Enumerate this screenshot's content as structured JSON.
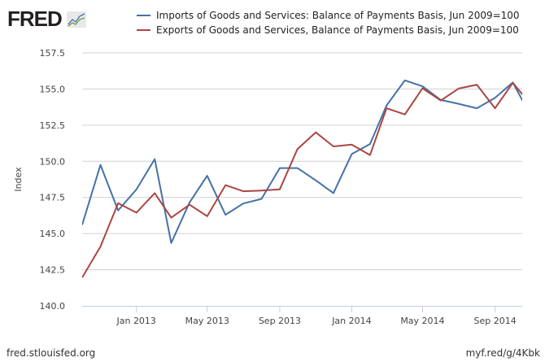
{
  "header": {
    "logo_text": "FRED"
  },
  "footer": {
    "source": "fred.stlouisfed.org",
    "short_url": "myf.red/g/4Kbk"
  },
  "colors": {
    "imports": "#4572A7",
    "exports": "#AA4643",
    "grid": "#D0D0D0",
    "axis": "#C0D0E0"
  },
  "chart_data": {
    "type": "line",
    "ylabel": "Index",
    "xlabel": "",
    "ylim": [
      140.0,
      157.5
    ],
    "xlim": [
      "2012-10-01",
      "2014-10-17"
    ],
    "grid": true,
    "legend_position": "top",
    "yticks": [
      "140.0",
      "142.5",
      "145.0",
      "147.5",
      "150.0",
      "152.5",
      "155.0",
      "157.5"
    ],
    "xticks": [
      {
        "date": "2013-01-01",
        "label": "Jan 2013"
      },
      {
        "date": "2013-05-01",
        "label": "May 2013"
      },
      {
        "date": "2013-09-01",
        "label": "Sep 2013"
      },
      {
        "date": "2014-01-01",
        "label": "Jan 2014"
      },
      {
        "date": "2014-05-01",
        "label": "May 2014"
      },
      {
        "date": "2014-09-01",
        "label": "Sep 2014"
      }
    ],
    "x": [
      "2012-10-01",
      "2012-11-01",
      "2012-12-01",
      "2013-01-01",
      "2013-02-01",
      "2013-03-01",
      "2013-04-01",
      "2013-05-01",
      "2013-06-01",
      "2013-07-01",
      "2013-08-01",
      "2013-09-01",
      "2013-10-01",
      "2013-11-01",
      "2013-12-01",
      "2014-01-01",
      "2014-02-01",
      "2014-03-01",
      "2014-04-01",
      "2014-05-01",
      "2014-06-01",
      "2014-07-01",
      "2014-08-01",
      "2014-09-01",
      "2014-10-01",
      "2014-11-01"
    ],
    "series": [
      {
        "name": "Imports of Goods and Services: Balance of Payments Basis, Jun 2009=100",
        "values": [
          145.6,
          149.75,
          146.6,
          148.05,
          150.15,
          144.35,
          147.15,
          149.0,
          146.3,
          147.08,
          147.4,
          149.53,
          149.53,
          148.68,
          147.8,
          150.5,
          151.2,
          153.86,
          155.6,
          155.19,
          154.24,
          153.98,
          153.67,
          154.39,
          155.45,
          153.1
        ]
      },
      {
        "name": "Exports of Goods and Services, Balance of Payments Basis, Jun 2009=100",
        "values": [
          141.95,
          144.1,
          147.1,
          146.45,
          147.8,
          146.1,
          147.0,
          146.2,
          148.35,
          147.93,
          147.98,
          148.06,
          150.85,
          152.0,
          151.03,
          151.16,
          150.43,
          153.67,
          153.24,
          155.05,
          154.2,
          155.03,
          155.3,
          153.67,
          155.43,
          153.9
        ]
      }
    ]
  }
}
